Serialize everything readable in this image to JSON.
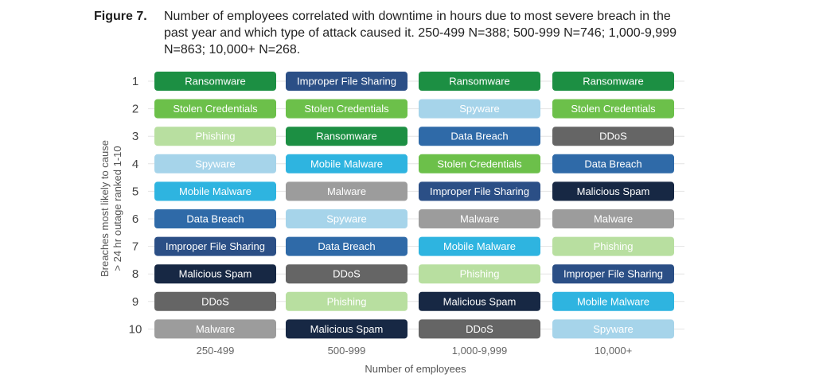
{
  "figure_label": "Figure 7.",
  "caption": "Number of employees correlated with downtime in hours due to most severe breach in the past year and which type of attack caused it. 250-499 N=388; 500-999 N=746; 1,000-9,999 N=863; 10,000+ N=268.",
  "chart_data": {
    "type": "table",
    "xlabel": "Number of employees",
    "ylabel_lines": [
      "Breaches most likely to cause",
      "> 24 hr outage ranked 1-10"
    ],
    "ranks": [
      "1",
      "2",
      "3",
      "4",
      "5",
      "6",
      "7",
      "8",
      "9",
      "10"
    ],
    "columns": [
      {
        "label": "250-499",
        "items": [
          "Ransomware",
          "Stolen Credentials",
          "Phishing",
          "Spyware",
          "Mobile Malware",
          "Data Breach",
          "Improper File Sharing",
          "Malicious Spam",
          "DDoS",
          "Malware"
        ]
      },
      {
        "label": "500-999",
        "items": [
          "Improper File Sharing",
          "Stolen Credentials",
          "Ransomware",
          "Mobile Malware",
          "Malware",
          "Spyware",
          "Data Breach",
          "DDoS",
          "Phishing",
          "Malicious Spam"
        ]
      },
      {
        "label": "1,000-9,999",
        "items": [
          "Ransomware",
          "Spyware",
          "Data Breach",
          "Stolen Credentials",
          "Improper File Sharing",
          "Malware",
          "Mobile Malware",
          "Phishing",
          "Malicious Spam",
          "DDoS"
        ]
      },
      {
        "label": "10,000+",
        "items": [
          "Ransomware",
          "Stolen Credentials",
          "DDoS",
          "Data Breach",
          "Malicious Spam",
          "Malware",
          "Phishing",
          "Improper File Sharing",
          "Mobile Malware",
          "Spyware"
        ]
      }
    ],
    "category_colors": {
      "Ransomware": "#1c8f43",
      "Stolen Credentials": "#6cc04a",
      "Phishing": "#b8dfa0",
      "Spyware": "#a6d4ea",
      "Mobile Malware": "#2eb4e0",
      "Data Breach": "#2f6aa8",
      "Improper File Sharing": "#2b4f86",
      "Malicious Spam": "#172844",
      "DDoS": "#656565",
      "Malware": "#9c9c9c"
    },
    "light_text_categories": [
      "Phishing",
      "Spyware"
    ]
  }
}
